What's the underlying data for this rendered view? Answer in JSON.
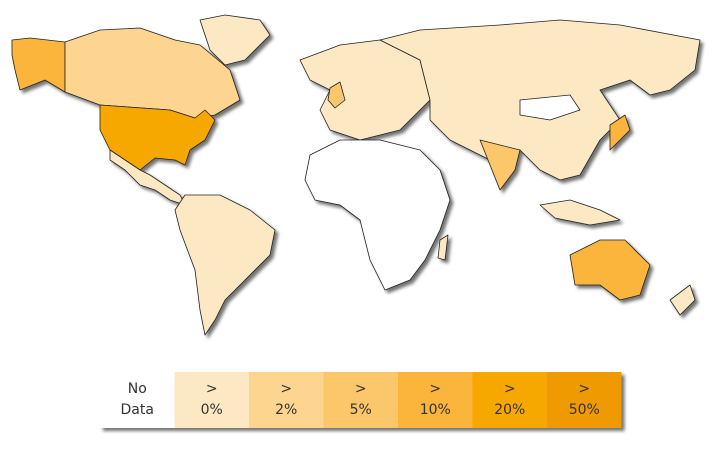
{
  "legend": {
    "items": [
      {
        "lines": [
          "No",
          "Data"
        ],
        "color": "#ffffff"
      },
      {
        "lines": [
          ">",
          "0%"
        ],
        "color": "#fde8c4"
      },
      {
        "lines": [
          ">",
          "2%"
        ],
        "color": "#fdd590"
      },
      {
        "lines": [
          ">",
          "5%"
        ],
        "color": "#fcc66a"
      },
      {
        "lines": [
          ">",
          "10%"
        ],
        "color": "#fbb53d"
      },
      {
        "lines": [
          ">",
          "20%"
        ],
        "color": "#f7a800"
      },
      {
        "lines": [
          ">",
          "50%"
        ],
        "color": "#ef9a00"
      }
    ]
  }
}
